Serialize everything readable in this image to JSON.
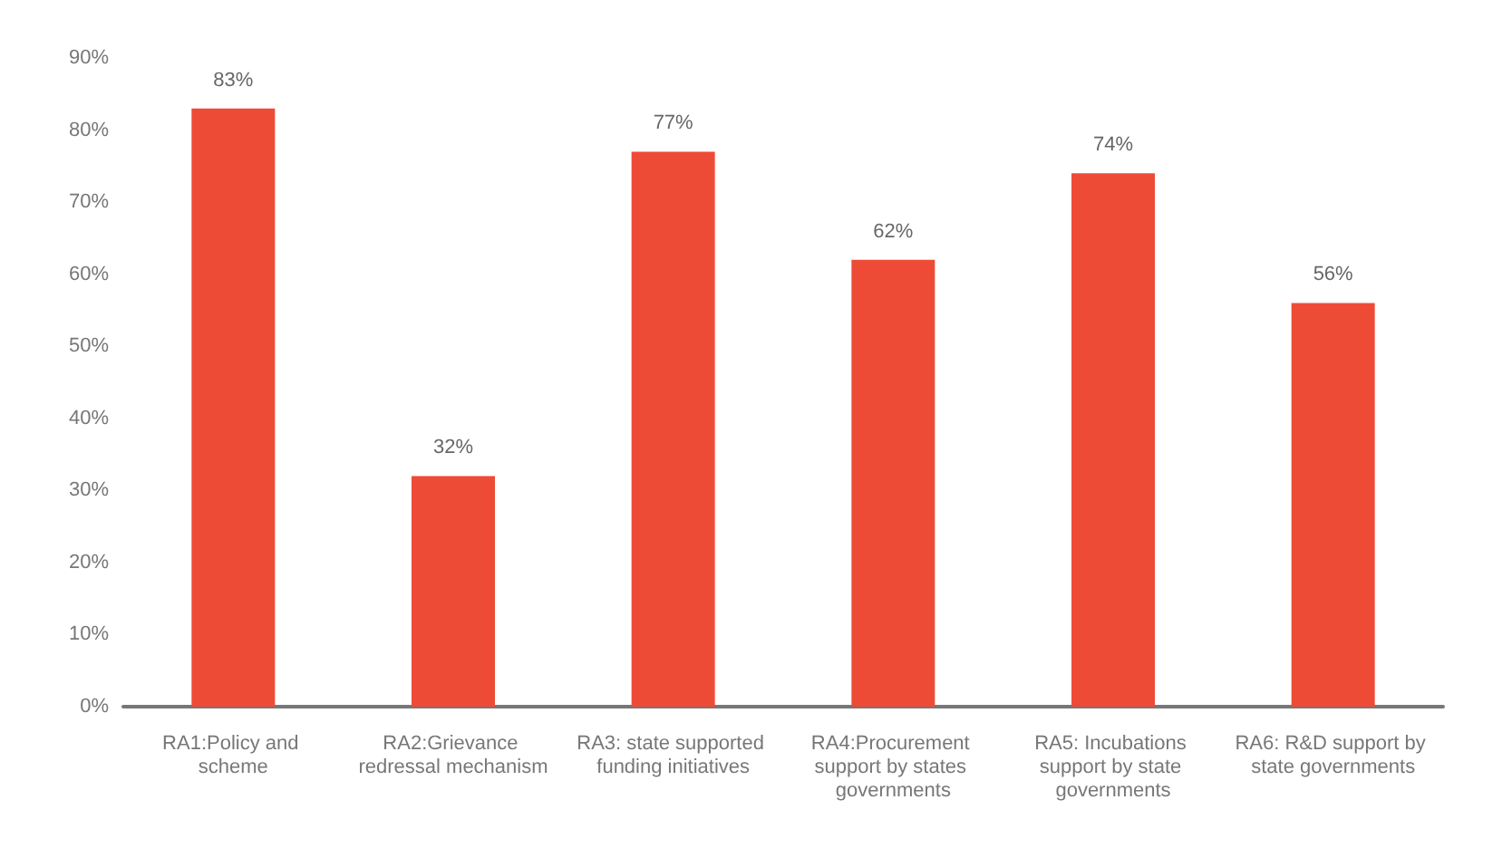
{
  "chart_data": {
    "type": "bar",
    "categories": [
      "RA1:Policy and scheme",
      "RA2:Grievance redressal mechanism",
      "RA3: state supported funding initiatives",
      "RA4:Procurement support by states governments",
      "RA5: Incubations support by state governments",
      "RA6: R&D support by state governments"
    ],
    "values": [
      83,
      32,
      77,
      62,
      74,
      56
    ],
    "value_labels": [
      "83%",
      "32%",
      "77%",
      "62%",
      "74%",
      "56%"
    ],
    "color": "#ee4b36",
    "ylim": [
      0,
      90
    ],
    "yticks": [
      {
        "value": 0,
        "label": "0%"
      },
      {
        "value": 10,
        "label": "10%"
      },
      {
        "value": 20,
        "label": "20%"
      },
      {
        "value": 30,
        "label": "30%"
      },
      {
        "value": 40,
        "label": "40%"
      },
      {
        "value": 50,
        "label": "50%"
      },
      {
        "value": 60,
        "label": "60%"
      },
      {
        "value": 70,
        "label": "70%"
      },
      {
        "value": 80,
        "label": "80%"
      },
      {
        "value": 90,
        "label": "90%"
      }
    ],
    "grid": false
  }
}
